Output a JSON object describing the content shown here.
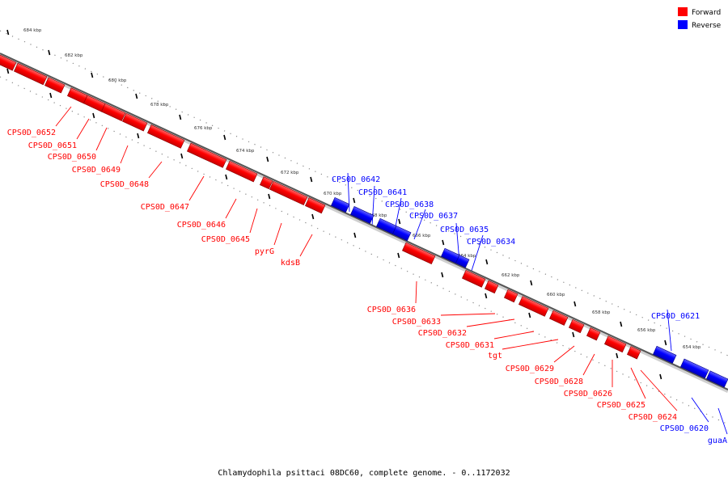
{
  "caption": "Chlamydophila psittaci 08DC60, complete genome. - 0..1172032",
  "legend": {
    "forward_label": "Forward",
    "reverse_label": "Reverse",
    "forward_color": "#ff0000",
    "reverse_color": "#0000ff"
  },
  "ticks": [
    {
      "label": "684 kbp",
      "kbp": 684
    },
    {
      "label": "682 kbp",
      "kbp": 682
    },
    {
      "label": "680 kbp",
      "kbp": 680
    },
    {
      "label": "678 kbp",
      "kbp": 678
    },
    {
      "label": "676 kbp",
      "kbp": 676
    },
    {
      "label": "674 kbp",
      "kbp": 674
    },
    {
      "label": "672 kbp",
      "kbp": 672
    },
    {
      "label": "670 kbp",
      "kbp": 670
    },
    {
      "label": "668 kbp",
      "kbp": 668
    },
    {
      "label": "666 kbp",
      "kbp": 666
    },
    {
      "label": "664 kbp",
      "kbp": 664
    },
    {
      "label": "662 kbp",
      "kbp": 662
    },
    {
      "label": "660 kbp",
      "kbp": 660
    },
    {
      "label": "658 kbp",
      "kbp": 658
    },
    {
      "label": "656 kbp",
      "kbp": 656
    },
    {
      "label": "654 kbp",
      "kbp": 654
    }
  ],
  "genes": [
    {
      "name": "CPS0D_0652",
      "strand": "forward"
    },
    {
      "name": "CPS0D_0651",
      "strand": "forward"
    },
    {
      "name": "CPS0D_0650",
      "strand": "forward"
    },
    {
      "name": "CPS0D_0649",
      "strand": "forward"
    },
    {
      "name": "CPS0D_0648",
      "strand": "forward"
    },
    {
      "name": "CPS0D_0647",
      "strand": "forward"
    },
    {
      "name": "CPS0D_0646",
      "strand": "forward"
    },
    {
      "name": "CPS0D_0645",
      "strand": "forward"
    },
    {
      "name": "pyrG",
      "strand": "forward"
    },
    {
      "name": "kdsB",
      "strand": "forward"
    },
    {
      "name": "CPS0D_0642",
      "strand": "reverse"
    },
    {
      "name": "CPS0D_0641",
      "strand": "reverse"
    },
    {
      "name": "CPS0D_0638",
      "strand": "reverse"
    },
    {
      "name": "CPS0D_0637",
      "strand": "reverse"
    },
    {
      "name": "CPS0D_0635",
      "strand": "reverse"
    },
    {
      "name": "CPS0D_0634",
      "strand": "reverse"
    },
    {
      "name": "CPS0D_0636",
      "strand": "forward"
    },
    {
      "name": "CPS0D_0633",
      "strand": "forward"
    },
    {
      "name": "CPS0D_0632",
      "strand": "forward"
    },
    {
      "name": "CPS0D_0631",
      "strand": "forward"
    },
    {
      "name": "tgt",
      "strand": "forward"
    },
    {
      "name": "CPS0D_0629",
      "strand": "forward"
    },
    {
      "name": "CPS0D_0628",
      "strand": "forward"
    },
    {
      "name": "CPS0D_0626",
      "strand": "forward"
    },
    {
      "name": "CPS0D_0625",
      "strand": "forward"
    },
    {
      "name": "CPS0D_0624",
      "strand": "forward"
    },
    {
      "name": "CPS0D_0621",
      "strand": "reverse"
    },
    {
      "name": "CPS0D_0620",
      "strand": "reverse"
    },
    {
      "name": "guaA",
      "strand": "reverse"
    }
  ]
}
